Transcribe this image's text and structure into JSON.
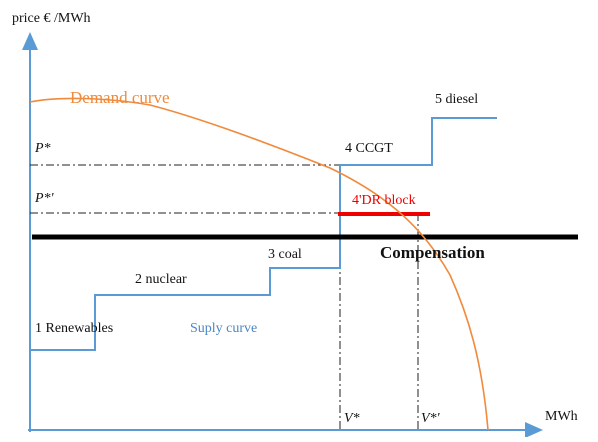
{
  "axes": {
    "y_label": "price € /MWh",
    "x_label": "MWh"
  },
  "labels": {
    "demand": "Demand curve",
    "supply": "Suply curve",
    "compensation": "Compensation",
    "p_star": "P*",
    "p_star_prime": "P*'",
    "v_star": "V*",
    "v_star_prime": "V*'",
    "dr_block": "4'DR block"
  },
  "blocks": [
    "1 Renewables",
    "2  nuclear",
    "3 coal",
    "4 CCGT",
    "5 diesel"
  ]
}
